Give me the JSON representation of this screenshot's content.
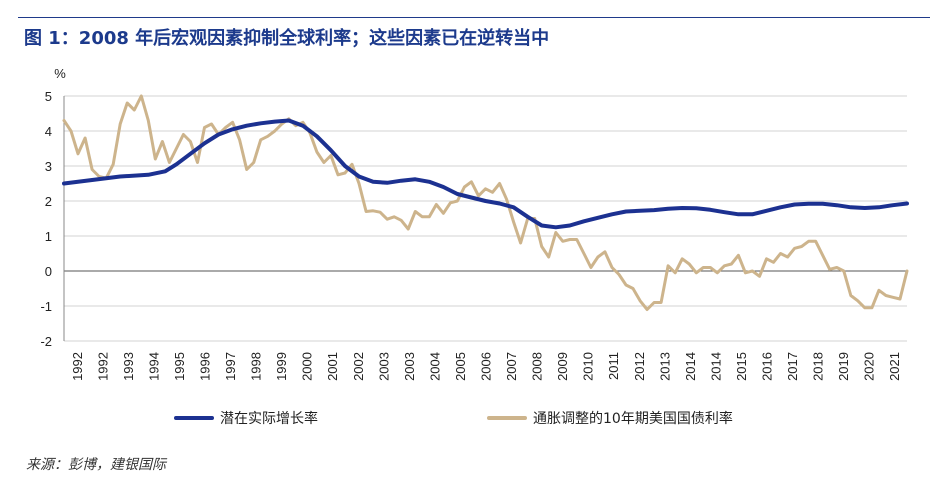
{
  "title": "图 1：2008 年后宏观因素抑制全球利率；这些因素已在逆转当中",
  "source": "来源：彭博，建银国际",
  "colors": {
    "series_0": "#1c3191",
    "series_1": "#cdb48c",
    "grid": "#d3d3d3",
    "title": "#1c3a8c"
  },
  "chart_data": {
    "type": "line",
    "title": "图 1：2008 年后宏观因素抑制全球利率；这些因素已在逆转当中",
    "ylabel": "%",
    "xlabel": "",
    "ylim": [
      -2,
      5
    ],
    "yticks": [
      -2,
      -1,
      0,
      1,
      2,
      3,
      4,
      5
    ],
    "xlim": [
      1992.0,
      2022.0
    ],
    "xtick_labels": [
      "1992",
      "1992",
      "1993",
      "1994",
      "1995",
      "1996",
      "1997",
      "1998",
      "1999",
      "2000",
      "2001",
      "2002",
      "2003",
      "2003",
      "2004",
      "2005",
      "2006",
      "2007",
      "2008",
      "2009",
      "2010",
      "2011",
      "2012",
      "2013",
      "2014",
      "2014",
      "2015",
      "2016",
      "2017",
      "2018",
      "2019",
      "2020",
      "2021"
    ],
    "grid": true,
    "legend_position": "bottom",
    "series": [
      {
        "name": "潜在实际增长率",
        "x": [
          1992.0,
          1993.0,
          1994.0,
          1995.0,
          1995.6,
          1996.0,
          1996.5,
          1997.0,
          1997.5,
          1998.0,
          1998.5,
          1999.0,
          1999.5,
          2000.0,
          2000.5,
          2001.0,
          2001.5,
          2002.0,
          2002.5,
          2003.0,
          2003.5,
          2004.0,
          2004.5,
          2005.0,
          2005.5,
          2006.0,
          2006.5,
          2007.0,
          2007.5,
          2008.0,
          2008.5,
          2009.0,
          2009.5,
          2010.0,
          2010.5,
          2011.0,
          2011.5,
          2012.0,
          2012.5,
          2013.0,
          2013.5,
          2014.0,
          2014.5,
          2015.0,
          2015.5,
          2016.0,
          2016.5,
          2017.0,
          2017.5,
          2018.0,
          2018.5,
          2019.0,
          2019.5,
          2020.0,
          2020.5,
          2021.0,
          2021.5,
          2022.0
        ],
        "values": [
          2.5,
          2.6,
          2.7,
          2.75,
          2.85,
          3.05,
          3.35,
          3.65,
          3.9,
          4.05,
          4.15,
          4.22,
          4.27,
          4.3,
          4.15,
          3.85,
          3.45,
          3.0,
          2.7,
          2.55,
          2.52,
          2.58,
          2.62,
          2.55,
          2.4,
          2.2,
          2.1,
          2.0,
          1.93,
          1.82,
          1.55,
          1.3,
          1.25,
          1.3,
          1.42,
          1.52,
          1.62,
          1.7,
          1.72,
          1.74,
          1.78,
          1.8,
          1.79,
          1.75,
          1.68,
          1.62,
          1.62,
          1.72,
          1.82,
          1.9,
          1.92,
          1.92,
          1.88,
          1.82,
          1.8,
          1.82,
          1.88,
          1.93
        ]
      },
      {
        "name": "通胀调整的10年期美国国债利率",
        "x": [
          1992.0,
          1992.25,
          1992.5,
          1992.75,
          1993.0,
          1993.25,
          1993.5,
          1993.75,
          1994.0,
          1994.25,
          1994.5,
          1994.75,
          1995.0,
          1995.25,
          1995.5,
          1995.75,
          1996.0,
          1996.25,
          1996.5,
          1996.75,
          1997.0,
          1997.25,
          1997.5,
          1997.75,
          1998.0,
          1998.25,
          1998.5,
          1998.75,
          1999.0,
          1999.25,
          1999.5,
          1999.75,
          2000.0,
          2000.25,
          2000.5,
          2000.75,
          2001.0,
          2001.25,
          2001.5,
          2001.75,
          2002.0,
          2002.25,
          2002.5,
          2002.75,
          2003.0,
          2003.25,
          2003.5,
          2003.75,
          2004.0,
          2004.25,
          2004.5,
          2004.75,
          2005.0,
          2005.25,
          2005.5,
          2005.75,
          2006.0,
          2006.25,
          2006.5,
          2006.75,
          2007.0,
          2007.25,
          2007.5,
          2007.75,
          2008.0,
          2008.25,
          2008.5,
          2008.75,
          2009.0,
          2009.25,
          2009.5,
          2009.75,
          2010.0,
          2010.25,
          2010.5,
          2010.75,
          2011.0,
          2011.25,
          2011.5,
          2011.75,
          2012.0,
          2012.25,
          2012.5,
          2012.75,
          2013.0,
          2013.25,
          2013.5,
          2013.75,
          2014.0,
          2014.25,
          2014.5,
          2014.75,
          2015.0,
          2015.25,
          2015.5,
          2015.75,
          2016.0,
          2016.25,
          2016.5,
          2016.75,
          2017.0,
          2017.25,
          2017.5,
          2017.75,
          2018.0,
          2018.25,
          2018.5,
          2018.75,
          2019.0,
          2019.25,
          2019.5,
          2019.75,
          2020.0,
          2020.25,
          2020.5,
          2020.75,
          2021.0,
          2021.25,
          2021.5,
          2021.75,
          2022.0
        ],
        "values": [
          4.3,
          4.0,
          3.35,
          3.8,
          2.9,
          2.7,
          2.65,
          3.05,
          4.2,
          4.8,
          4.6,
          5.0,
          4.3,
          3.2,
          3.7,
          3.1,
          3.5,
          3.9,
          3.7,
          3.1,
          4.1,
          4.2,
          3.9,
          4.1,
          4.25,
          3.75,
          2.9,
          3.1,
          3.75,
          3.85,
          4.0,
          4.2,
          4.35,
          4.15,
          4.25,
          3.95,
          3.4,
          3.1,
          3.3,
          2.75,
          2.8,
          3.05,
          2.5,
          1.7,
          1.72,
          1.68,
          1.48,
          1.55,
          1.45,
          1.2,
          1.7,
          1.55,
          1.55,
          1.9,
          1.65,
          1.95,
          2.0,
          2.4,
          2.55,
          2.15,
          2.35,
          2.25,
          2.5,
          2.05,
          1.4,
          0.8,
          1.5,
          1.5,
          0.7,
          0.4,
          1.1,
          0.85,
          0.9,
          0.9,
          0.5,
          0.1,
          0.4,
          0.55,
          0.1,
          -0.1,
          -0.4,
          -0.5,
          -0.85,
          -1.1,
          -0.9,
          -0.9,
          0.15,
          -0.05,
          0.35,
          0.2,
          -0.05,
          0.1,
          0.1,
          -0.05,
          0.15,
          0.2,
          0.45,
          -0.05,
          0.0,
          -0.15,
          0.35,
          0.25,
          0.5,
          0.4,
          0.65,
          0.7,
          0.85,
          0.85,
          0.45,
          0.05,
          0.1,
          0.0,
          -0.7,
          -0.85,
          -1.05,
          -1.05,
          -0.55,
          -0.7,
          -0.75,
          -0.8,
          0.0
        ]
      }
    ]
  }
}
